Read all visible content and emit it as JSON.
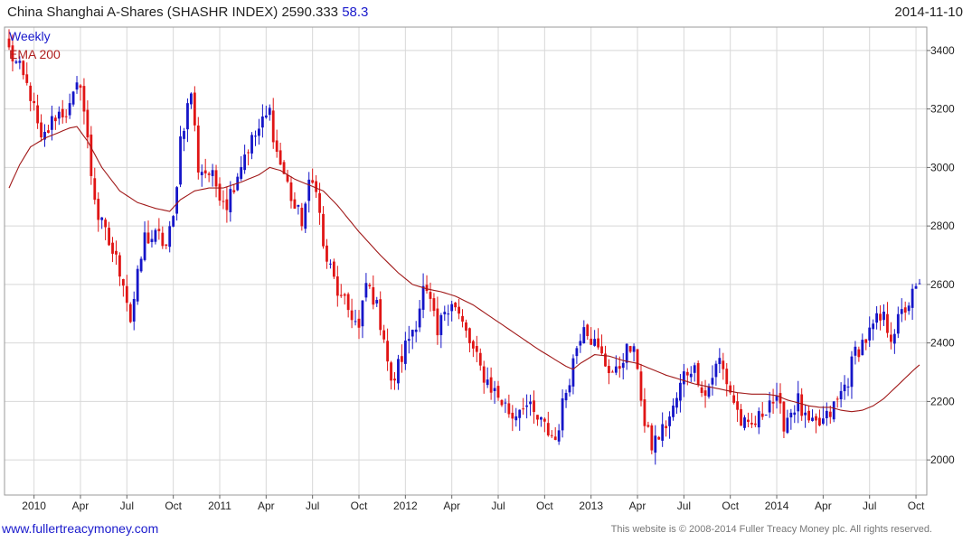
{
  "header": {
    "title_text": "China Shanghai A-Shares (SHASHR INDEX) 2590.333",
    "change": "58.3",
    "date": "2014-11-10"
  },
  "legend": {
    "period": "Weekly",
    "ema": "EMA 200"
  },
  "footer": {
    "website": "www.fullertreacymoney.com",
    "copyright": "This website is © 2008-2014 Fuller Treacy Money plc. All rights reserved."
  },
  "colors": {
    "up": "#1515c8",
    "down": "#e01515",
    "ema": "#a01818",
    "grid": "#d8d8d8"
  },
  "chart_data": {
    "type": "candlestick",
    "title": "China Shanghai A-Shares (SHASHR INDEX)",
    "last": 2590.333,
    "change": 58.3,
    "y_ticks": [
      2000,
      2200,
      2400,
      2600,
      2800,
      3000,
      3200,
      3400
    ],
    "y_labels": [
      "2000",
      "2200",
      "2400",
      "2600",
      "2800",
      "3000",
      "3200",
      "3400"
    ],
    "ylim": [
      1880,
      3480
    ],
    "n_weeks": 256,
    "x_ticks": [
      {
        "week": 7,
        "label": "2010"
      },
      {
        "week": 20,
        "label": "Apr"
      },
      {
        "week": 33,
        "label": "Jul"
      },
      {
        "week": 46,
        "label": "Oct"
      },
      {
        "week": 59,
        "label": "2011"
      },
      {
        "week": 72,
        "label": "Apr"
      },
      {
        "week": 85,
        "label": "Jul"
      },
      {
        "week": 98,
        "label": "Oct"
      },
      {
        "week": 111,
        "label": "2012"
      },
      {
        "week": 124,
        "label": "Apr"
      },
      {
        "week": 137,
        "label": "Jul"
      },
      {
        "week": 150,
        "label": "Oct"
      },
      {
        "week": 163,
        "label": "2013"
      },
      {
        "week": 176,
        "label": "Apr"
      },
      {
        "week": 189,
        "label": "Jul"
      },
      {
        "week": 202,
        "label": "Oct"
      },
      {
        "week": 215,
        "label": "2014"
      },
      {
        "week": 228,
        "label": "Apr"
      },
      {
        "week": 241,
        "label": "Jul"
      },
      {
        "week": 254,
        "label": "Oct"
      }
    ],
    "weekly_close_anchors": [
      [
        0,
        3400
      ],
      [
        3,
        3330
      ],
      [
        6,
        3250
      ],
      [
        9,
        3080
      ],
      [
        13,
        3180
      ],
      [
        17,
        3200
      ],
      [
        20,
        3300
      ],
      [
        23,
        2980
      ],
      [
        25,
        2830
      ],
      [
        28,
        2740
      ],
      [
        32,
        2620
      ],
      [
        34,
        2480
      ],
      [
        36,
        2620
      ],
      [
        38,
        2760
      ],
      [
        42,
        2760
      ],
      [
        44,
        2730
      ],
      [
        46,
        2820
      ],
      [
        48,
        3100
      ],
      [
        51,
        3260
      ],
      [
        53,
        3000
      ],
      [
        56,
        2980
      ],
      [
        59,
        2920
      ],
      [
        61,
        2880
      ],
      [
        63,
        2950
      ],
      [
        66,
        3050
      ],
      [
        70,
        3130
      ],
      [
        73,
        3190
      ],
      [
        75,
        3050
      ],
      [
        78,
        2940
      ],
      [
        80,
        2860
      ],
      [
        82,
        2820
      ],
      [
        84,
        2930
      ],
      [
        86,
        2950
      ],
      [
        88,
        2720
      ],
      [
        90,
        2650
      ],
      [
        93,
        2540
      ],
      [
        96,
        2500
      ],
      [
        98,
        2440
      ],
      [
        100,
        2600
      ],
      [
        102,
        2560
      ],
      [
        105,
        2430
      ],
      [
        107,
        2250
      ],
      [
        109,
        2320
      ],
      [
        112,
        2420
      ],
      [
        114,
        2480
      ],
      [
        116,
        2580
      ],
      [
        118,
        2530
      ],
      [
        120,
        2420
      ],
      [
        122,
        2520
      ],
      [
        124,
        2550
      ],
      [
        127,
        2460
      ],
      [
        129,
        2400
      ],
      [
        132,
        2310
      ],
      [
        135,
        2250
      ],
      [
        138,
        2200
      ],
      [
        141,
        2150
      ],
      [
        144,
        2200
      ],
      [
        147,
        2150
      ],
      [
        150,
        2110
      ],
      [
        153,
        2070
      ],
      [
        156,
        2240
      ],
      [
        159,
        2390
      ],
      [
        161,
        2480
      ],
      [
        163,
        2420
      ],
      [
        165,
        2370
      ],
      [
        167,
        2330
      ],
      [
        170,
        2290
      ],
      [
        172,
        2360
      ],
      [
        174,
        2380
      ],
      [
        176,
        2330
      ],
      [
        178,
        2110
      ],
      [
        180,
        2050
      ],
      [
        183,
        2100
      ],
      [
        186,
        2170
      ],
      [
        189,
        2290
      ],
      [
        191,
        2320
      ],
      [
        193,
        2290
      ],
      [
        195,
        2220
      ],
      [
        197,
        2290
      ],
      [
        199,
        2340
      ],
      [
        201,
        2270
      ],
      [
        203,
        2200
      ],
      [
        205,
        2130
      ],
      [
        207,
        2100
      ],
      [
        210,
        2140
      ],
      [
        213,
        2210
      ],
      [
        215,
        2190
      ],
      [
        217,
        2130
      ],
      [
        219,
        2170
      ],
      [
        221,
        2200
      ],
      [
        223,
        2130
      ],
      [
        225,
        2110
      ],
      [
        227,
        2120
      ],
      [
        229,
        2140
      ],
      [
        232,
        2200
      ],
      [
        235,
        2280
      ],
      [
        237,
        2370
      ],
      [
        239,
        2400
      ],
      [
        241,
        2430
      ],
      [
        243,
        2470
      ],
      [
        245,
        2480
      ],
      [
        247,
        2430
      ],
      [
        249,
        2470
      ],
      [
        251,
        2520
      ],
      [
        253,
        2560
      ],
      [
        255,
        2590
      ]
    ],
    "ema_label": "EMA 200",
    "ema_anchors": [
      [
        0,
        2930
      ],
      [
        3,
        3010
      ],
      [
        6,
        3070
      ],
      [
        10,
        3100
      ],
      [
        14,
        3120
      ],
      [
        17,
        3135
      ],
      [
        19,
        3140
      ],
      [
        22,
        3090
      ],
      [
        26,
        3000
      ],
      [
        31,
        2920
      ],
      [
        36,
        2880
      ],
      [
        41,
        2860
      ],
      [
        45,
        2850
      ],
      [
        48,
        2890
      ],
      [
        52,
        2920
      ],
      [
        56,
        2930
      ],
      [
        60,
        2930
      ],
      [
        65,
        2950
      ],
      [
        70,
        2975
      ],
      [
        73,
        3000
      ],
      [
        76,
        2990
      ],
      [
        80,
        2960
      ],
      [
        84,
        2940
      ],
      [
        88,
        2920
      ],
      [
        92,
        2870
      ],
      [
        98,
        2780
      ],
      [
        104,
        2700
      ],
      [
        109,
        2640
      ],
      [
        113,
        2600
      ],
      [
        117,
        2585
      ],
      [
        121,
        2575
      ],
      [
        125,
        2560
      ],
      [
        130,
        2530
      ],
      [
        136,
        2480
      ],
      [
        142,
        2430
      ],
      [
        148,
        2380
      ],
      [
        152,
        2350
      ],
      [
        156,
        2320
      ],
      [
        158,
        2310
      ],
      [
        160,
        2330
      ],
      [
        164,
        2360
      ],
      [
        168,
        2355
      ],
      [
        172,
        2340
      ],
      [
        176,
        2330
      ],
      [
        180,
        2310
      ],
      [
        184,
        2290
      ],
      [
        188,
        2275
      ],
      [
        192,
        2260
      ],
      [
        196,
        2250
      ],
      [
        200,
        2240
      ],
      [
        204,
        2230
      ],
      [
        208,
        2225
      ],
      [
        212,
        2225
      ],
      [
        215,
        2220
      ],
      [
        218,
        2205
      ],
      [
        221,
        2195
      ],
      [
        224,
        2185
      ],
      [
        227,
        2180
      ],
      [
        230,
        2180
      ],
      [
        233,
        2170
      ],
      [
        236,
        2165
      ],
      [
        239,
        2170
      ],
      [
        242,
        2185
      ],
      [
        245,
        2210
      ],
      [
        248,
        2245
      ],
      [
        251,
        2280
      ],
      [
        254,
        2315
      ],
      [
        255,
        2325
      ]
    ]
  }
}
